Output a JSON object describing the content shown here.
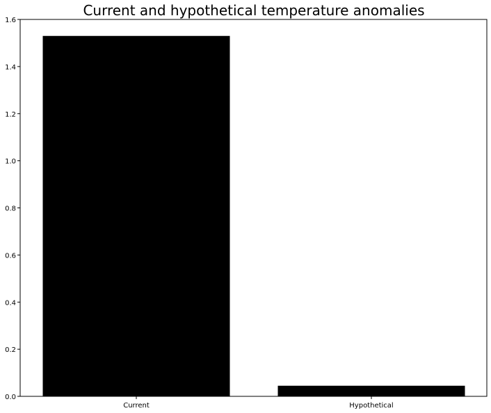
{
  "chart_data": {
    "type": "bar",
    "title": "Current and hypothetical temperature anomalies",
    "categories": [
      "Current",
      "Hypothetical"
    ],
    "values": [
      1.53,
      0.045
    ],
    "ylim": [
      0,
      1.6
    ],
    "yticks": [
      0.0,
      0.2,
      0.4,
      0.6,
      0.8,
      1.0,
      1.2,
      1.4,
      1.6
    ],
    "ytick_labels": [
      "0.0",
      "0.2",
      "0.4",
      "0.6",
      "0.8",
      "1.0",
      "1.2",
      "1.4",
      "1.6"
    ],
    "xlabel": "",
    "ylabel": "",
    "grid": false,
    "colors": {
      "bar": "#000000",
      "axes": "#000000",
      "background": "#ffffff"
    }
  }
}
